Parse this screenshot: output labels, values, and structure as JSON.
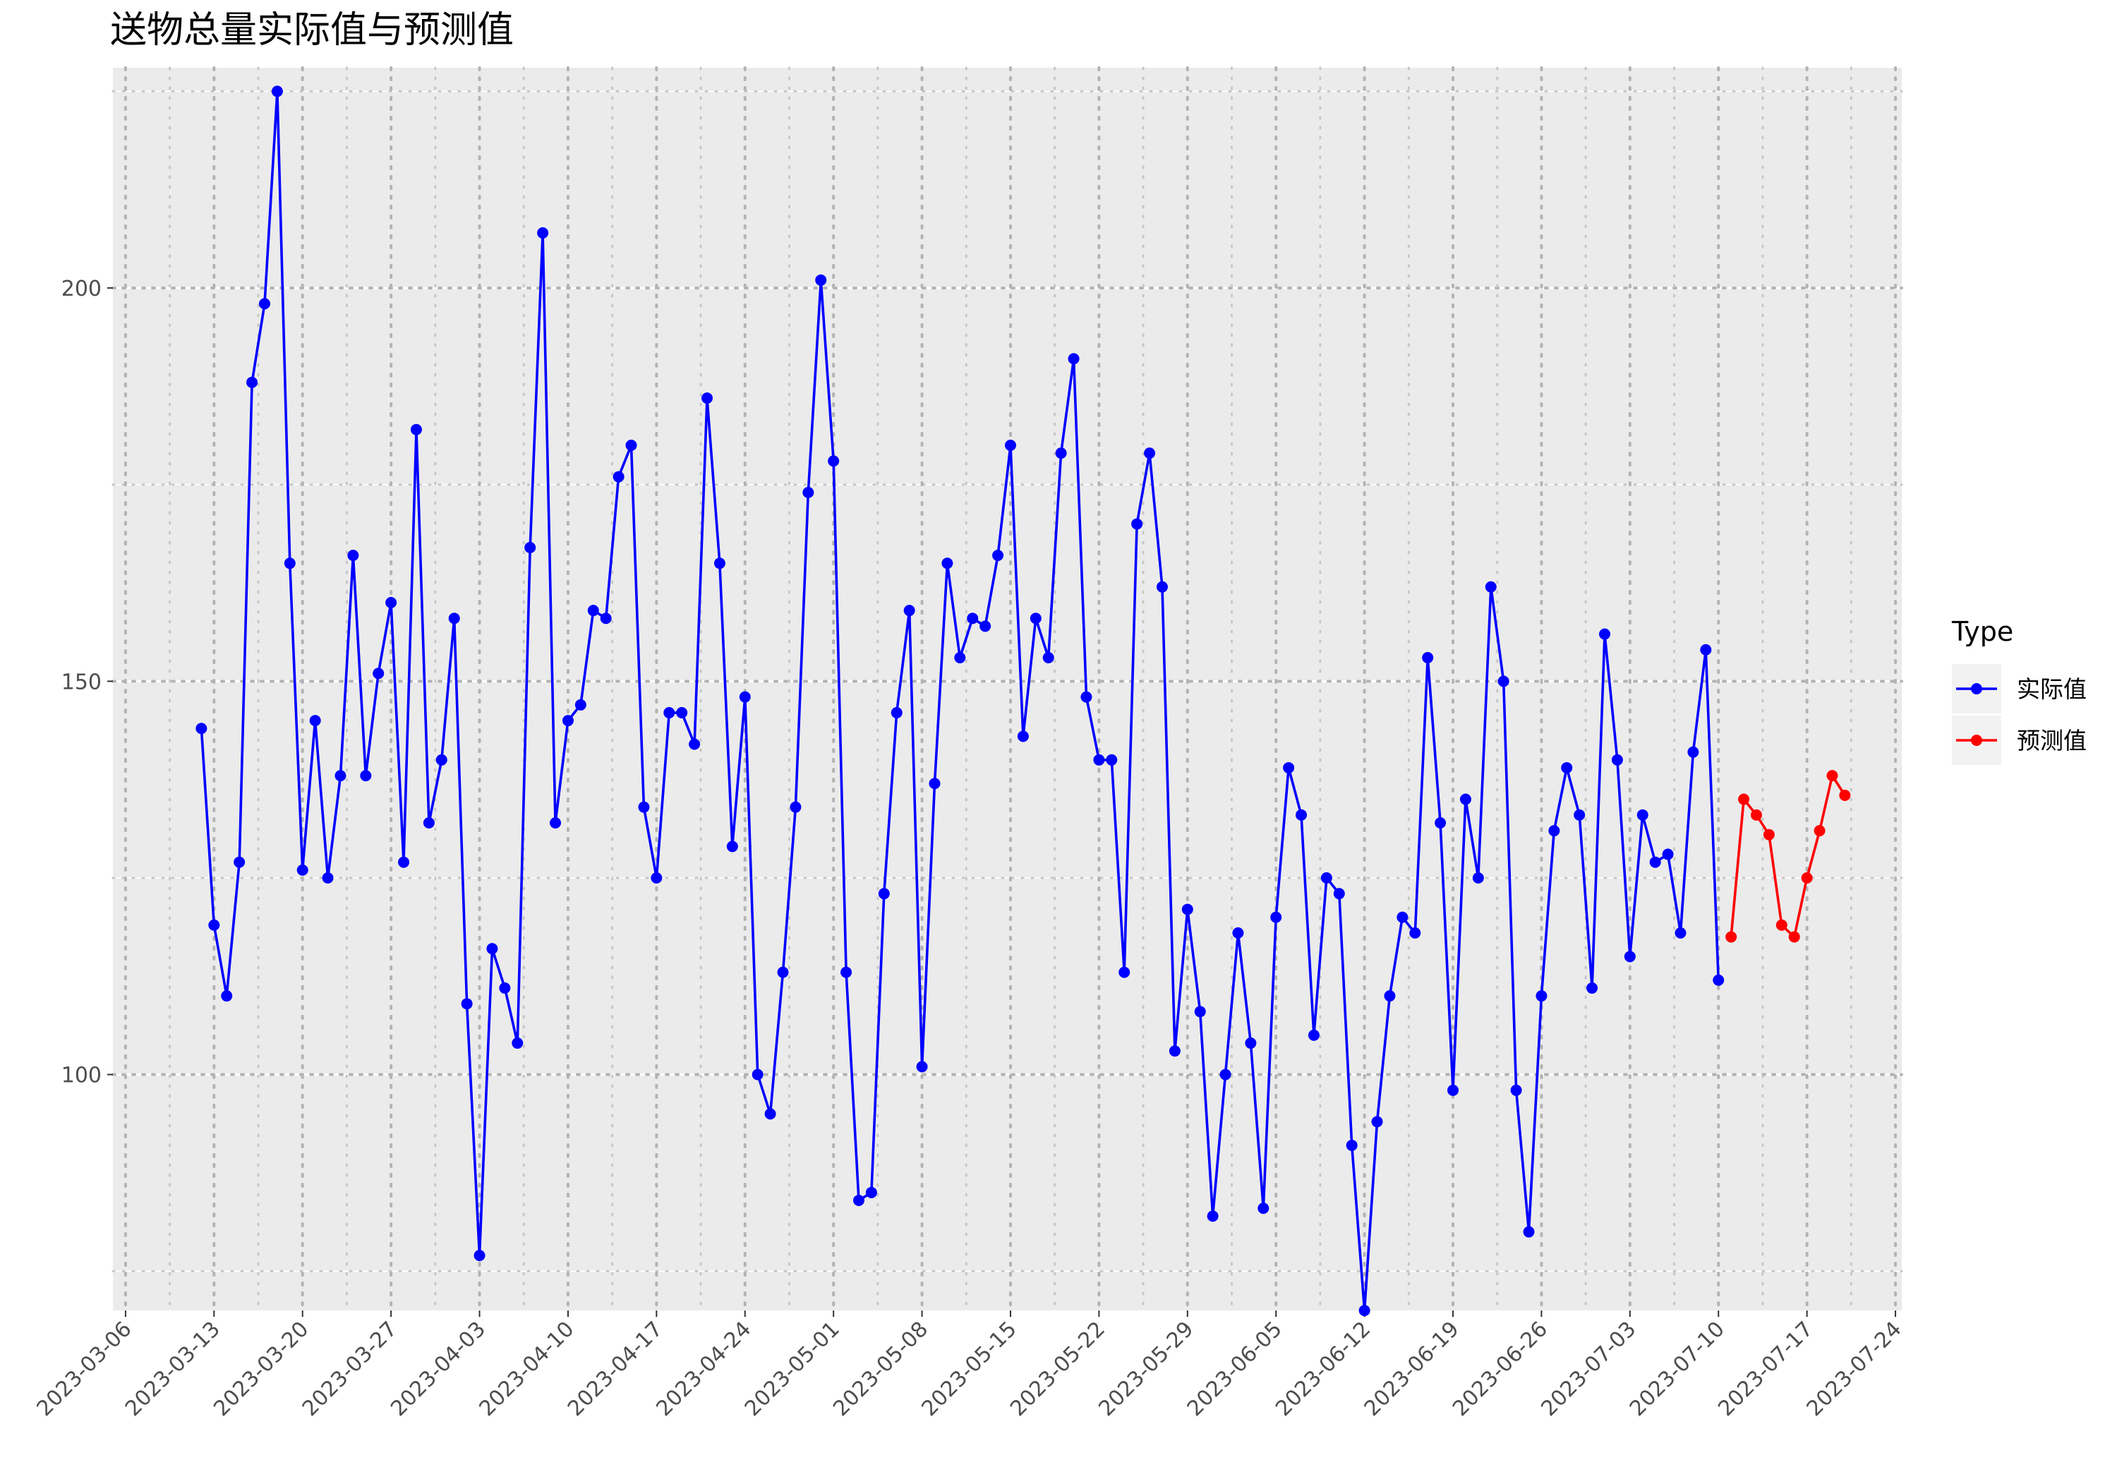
{
  "chart_data": {
    "type": "line",
    "title": "送物总量实际值与预测值",
    "xlabel": "",
    "ylabel": "",
    "x_ticks": [
      "2023-03-06",
      "2023-03-13",
      "2023-03-20",
      "2023-03-27",
      "2023-04-03",
      "2023-04-10",
      "2023-04-17",
      "2023-04-24",
      "2023-05-01",
      "2023-05-08",
      "2023-05-15",
      "2023-05-22",
      "2023-05-29",
      "2023-06-05",
      "2023-06-12",
      "2023-06-19",
      "2023-06-26",
      "2023-07-03",
      "2023-07-10",
      "2023-07-17",
      "2023-07-24"
    ],
    "y_ticks": [
      100,
      150,
      200
    ],
    "xlim": [
      "2023-03-06",
      "2023-07-24"
    ],
    "ylim": [
      70,
      228
    ],
    "grid": true,
    "legend": {
      "title": "Type",
      "position": "right"
    },
    "series": [
      {
        "name": "实际值",
        "color": "#0000ff",
        "x": [
          "2023-03-12",
          "2023-03-13",
          "2023-03-14",
          "2023-03-15",
          "2023-03-16",
          "2023-03-17",
          "2023-03-18",
          "2023-03-19",
          "2023-03-20",
          "2023-03-21",
          "2023-03-22",
          "2023-03-23",
          "2023-03-24",
          "2023-03-25",
          "2023-03-26",
          "2023-03-27",
          "2023-03-28",
          "2023-03-29",
          "2023-03-30",
          "2023-03-31",
          "2023-04-01",
          "2023-04-02",
          "2023-04-03",
          "2023-04-04",
          "2023-04-05",
          "2023-04-06",
          "2023-04-07",
          "2023-04-08",
          "2023-04-09",
          "2023-04-10",
          "2023-04-11",
          "2023-04-12",
          "2023-04-13",
          "2023-04-14",
          "2023-04-15",
          "2023-04-16",
          "2023-04-17",
          "2023-04-18",
          "2023-04-19",
          "2023-04-20",
          "2023-04-21",
          "2023-04-22",
          "2023-04-23",
          "2023-04-24",
          "2023-04-25",
          "2023-04-26",
          "2023-04-27",
          "2023-04-28",
          "2023-04-29",
          "2023-04-30",
          "2023-05-01",
          "2023-05-02",
          "2023-05-03",
          "2023-05-04",
          "2023-05-05",
          "2023-05-06",
          "2023-05-07",
          "2023-05-08",
          "2023-05-09",
          "2023-05-10",
          "2023-05-11",
          "2023-05-12",
          "2023-05-13",
          "2023-05-14",
          "2023-05-15",
          "2023-05-16",
          "2023-05-17",
          "2023-05-18",
          "2023-05-19",
          "2023-05-20",
          "2023-05-21",
          "2023-05-22",
          "2023-05-23",
          "2023-05-24",
          "2023-05-25",
          "2023-05-26",
          "2023-05-27",
          "2023-05-28",
          "2023-05-29",
          "2023-05-30",
          "2023-05-31",
          "2023-06-01",
          "2023-06-02",
          "2023-06-03",
          "2023-06-04",
          "2023-06-05",
          "2023-06-06",
          "2023-06-07",
          "2023-06-08",
          "2023-06-09",
          "2023-06-10",
          "2023-06-11",
          "2023-06-12",
          "2023-06-13",
          "2023-06-14",
          "2023-06-15",
          "2023-06-16",
          "2023-06-17",
          "2023-06-18",
          "2023-06-19",
          "2023-06-20",
          "2023-06-21",
          "2023-06-22",
          "2023-06-23",
          "2023-06-24",
          "2023-06-25",
          "2023-06-26",
          "2023-06-27",
          "2023-06-28",
          "2023-06-29",
          "2023-06-30",
          "2023-07-01",
          "2023-07-02",
          "2023-07-03",
          "2023-07-04",
          "2023-07-05",
          "2023-07-06",
          "2023-07-07",
          "2023-07-08",
          "2023-07-09",
          "2023-07-10"
        ],
        "values": [
          144,
          119,
          110,
          127,
          188,
          198,
          225,
          165,
          126,
          145,
          125,
          138,
          166,
          138,
          151,
          160,
          127,
          182,
          132,
          140,
          158,
          109,
          77,
          116,
          111,
          104,
          167,
          207,
          132,
          145,
          147,
          159,
          158,
          176,
          180,
          134,
          125,
          146,
          146,
          142,
          186,
          165,
          129,
          148,
          100,
          95,
          113,
          134,
          174,
          201,
          178,
          113,
          84,
          85,
          123,
          146,
          159,
          101,
          137,
          165,
          153,
          158,
          157,
          166,
          180,
          143,
          158,
          153,
          179,
          191,
          148,
          140,
          140,
          113,
          170,
          179,
          162,
          103,
          121,
          108,
          82,
          100,
          118,
          104,
          83,
          120,
          139,
          133,
          105,
          125,
          123,
          91,
          70,
          94,
          110,
          120,
          118,
          153,
          132,
          98,
          135,
          125,
          162,
          150,
          98,
          80,
          110,
          131,
          139,
          133,
          111,
          156,
          140,
          115,
          133,
          127,
          128,
          118,
          141,
          154,
          112
        ]
      },
      {
        "name": "预测值",
        "color": "#ff0000",
        "x": [
          "2023-07-11",
          "2023-07-12",
          "2023-07-13",
          "2023-07-14",
          "2023-07-15",
          "2023-07-16",
          "2023-07-17",
          "2023-07-18",
          "2023-07-19",
          "2023-07-20"
        ],
        "values": [
          117.5,
          135,
          133,
          130.5,
          119,
          117.5,
          125,
          131,
          138,
          135.5
        ]
      }
    ]
  }
}
